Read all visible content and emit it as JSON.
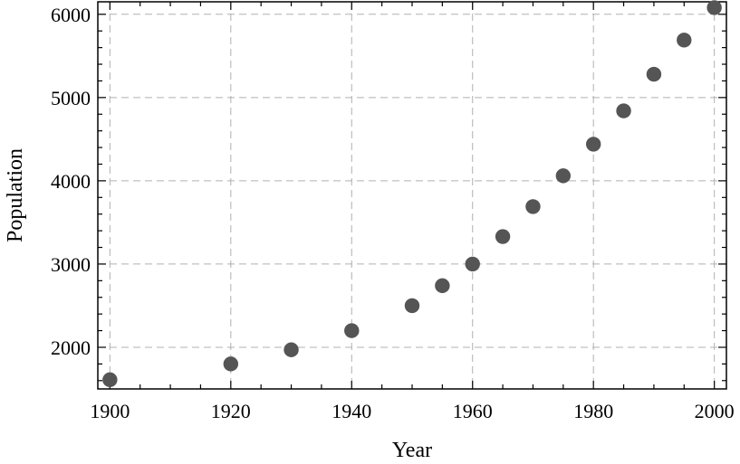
{
  "chart_data": {
    "type": "scatter",
    "title": "",
    "xlabel": "Year",
    "ylabel": "Population",
    "xlim": [
      1898,
      2002
    ],
    "ylim": [
      1500,
      6150
    ],
    "xticks": [
      1900,
      1920,
      1940,
      1960,
      1980,
      2000
    ],
    "yticks": [
      2000,
      3000,
      4000,
      5000,
      6000
    ],
    "grid": true,
    "marker_color": "#555555",
    "series": [
      {
        "x": [
          1900,
          1920,
          1930,
          1940,
          1950,
          1955,
          1960,
          1965,
          1970,
          1975,
          1980,
          1985,
          1990,
          1995,
          2000
        ],
        "y": [
          1610,
          1800,
          1970,
          2200,
          2500,
          2740,
          3000,
          3330,
          3690,
          4060,
          4440,
          4840,
          5280,
          5690,
          6080
        ]
      }
    ]
  }
}
